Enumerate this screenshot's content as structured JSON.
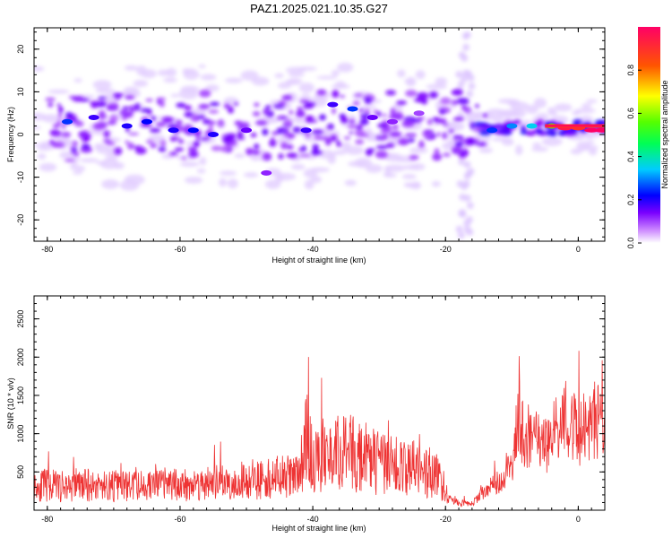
{
  "title": "PAZ1.2025.021.10.35.G27",
  "chart_data": [
    {
      "type": "heatmap",
      "xlabel": "Height of straight line (km)",
      "ylabel": "Frequency (Hz)",
      "xlim": [
        -82,
        4
      ],
      "ylim": [
        -25,
        25
      ],
      "xticks": [
        -80,
        -60,
        -40,
        -20,
        0
      ],
      "yticks": [
        -20,
        -10,
        0,
        10,
        20
      ],
      "colorbar": {
        "label": "Normalized spectral amplitude",
        "range": [
          0,
          1
        ],
        "ticks": [
          "0.0",
          "0.2",
          "0.4",
          "0.6",
          "0.8"
        ],
        "tick_values": [
          0.0,
          0.2,
          0.4,
          0.6,
          0.8
        ]
      },
      "blobs": [
        {
          "x": -77,
          "y": 3,
          "v": 0.25
        },
        {
          "x": -73,
          "y": 4,
          "v": 0.18
        },
        {
          "x": -68,
          "y": 2,
          "v": 0.2
        },
        {
          "x": -65,
          "y": 3,
          "v": 0.22
        },
        {
          "x": -61,
          "y": 1,
          "v": 0.2
        },
        {
          "x": -58,
          "y": 1,
          "v": 0.22
        },
        {
          "x": -55,
          "y": 0,
          "v": 0.2
        },
        {
          "x": -50,
          "y": 1,
          "v": 0.15
        },
        {
          "x": -47,
          "y": -9,
          "v": 0.12
        },
        {
          "x": -41,
          "y": 1,
          "v": 0.18
        },
        {
          "x": -37,
          "y": 7,
          "v": 0.18
        },
        {
          "x": -34,
          "y": 6,
          "v": 0.25
        },
        {
          "x": -31,
          "y": 4,
          "v": 0.15
        },
        {
          "x": -28,
          "y": 3,
          "v": 0.12
        },
        {
          "x": -24,
          "y": 5,
          "v": 0.1
        },
        {
          "x": -13,
          "y": 1,
          "v": 0.25
        },
        {
          "x": -10,
          "y": 2,
          "v": 0.3
        },
        {
          "x": -7,
          "y": 2,
          "v": 0.35
        },
        {
          "x": -4,
          "y": 2,
          "v": 0.55
        },
        {
          "x": -2,
          "y": 1.5,
          "v": 0.95
        },
        {
          "x": 0,
          "y": 1.5,
          "v": 0.9
        },
        {
          "x": 2,
          "y": 1,
          "v": 1.0
        },
        {
          "x": 3.5,
          "y": 1,
          "v": 1.0
        }
      ]
    },
    {
      "type": "line",
      "xlabel": "Height of straight line (km)",
      "ylabel": "SNR (10 * v/v)",
      "xlim": [
        -82,
        4
      ],
      "ylim": [
        0,
        2800
      ],
      "xticks": [
        -80,
        -60,
        -40,
        -20,
        0
      ],
      "yticks": [
        500,
        1000,
        1500,
        2000,
        2500
      ],
      "color": "#ee3333",
      "series": [
        {
          "x": [
            -82,
            -80,
            -78,
            -76,
            -74,
            -72,
            -70,
            -68,
            -66,
            -64,
            -62,
            -60,
            -58,
            -56,
            -54,
            -52,
            -50,
            -48,
            -46,
            -44,
            -42,
            -41,
            -40,
            -38,
            -36,
            -34,
            -32,
            -30,
            -28,
            -26,
            -24,
            -22,
            -20,
            -18,
            -16,
            -15,
            -14,
            -13,
            -12,
            -11,
            -10,
            -9.5,
            -9,
            -8.5,
            -8,
            -7,
            -6,
            -5,
            -4,
            -3,
            -2,
            -1,
            0,
            1,
            2,
            3,
            4
          ],
          "values": [
            300,
            320,
            300,
            310,
            320,
            310,
            310,
            300,
            310,
            320,
            330,
            320,
            330,
            340,
            350,
            360,
            380,
            400,
            420,
            420,
            450,
            900,
            550,
            650,
            680,
            680,
            620,
            550,
            520,
            500,
            480,
            450,
            250,
            150,
            150,
            260,
            400,
            500,
            600,
            800,
            1000,
            1500,
            2000,
            1700,
            1300,
            1500,
            1400,
            1300,
            1500,
            1800,
            1900,
            1800,
            1600,
            1700,
            1800,
            1900,
            1750
          ]
        }
      ]
    }
  ]
}
